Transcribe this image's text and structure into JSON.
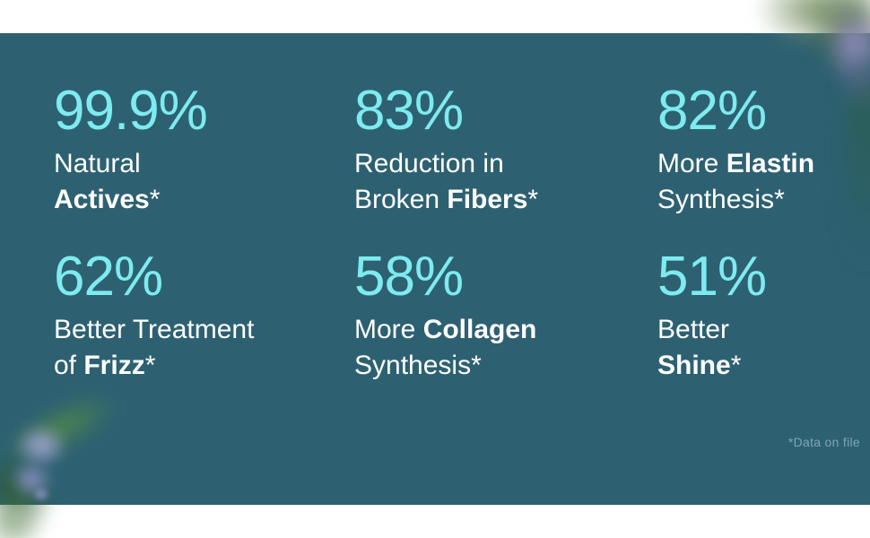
{
  "colors": {
    "panel": "#2d6172",
    "accent": "#7debef",
    "text": "#ffffff",
    "footnote": "#7fa6b5"
  },
  "decor": {
    "top_right": "blurred-plant-with-purple-flower",
    "bottom_left": "blurred-plant-with-purple-flowers"
  },
  "stats": [
    {
      "value": "99.9%",
      "l1_pre": "Natural",
      "l1_bold": "",
      "l1_post": "",
      "l2_pre": "",
      "l2_bold": "Actives",
      "l2_post": "*"
    },
    {
      "value": "83%",
      "l1_pre": "Reduction in",
      "l1_bold": "",
      "l1_post": "",
      "l2_pre": "Broken ",
      "l2_bold": "Fibers",
      "l2_post": "*"
    },
    {
      "value": "82%",
      "l1_pre": "More ",
      "l1_bold": "Elastin",
      "l1_post": "",
      "l2_pre": "Synthesis",
      "l2_bold": "",
      "l2_post": "*"
    },
    {
      "value": "62%",
      "l1_pre": "Better Treatment",
      "l1_bold": "",
      "l1_post": "",
      "l2_pre": "of ",
      "l2_bold": "Frizz",
      "l2_post": "*"
    },
    {
      "value": "58%",
      "l1_pre": "More ",
      "l1_bold": "Collagen",
      "l1_post": "",
      "l2_pre": "Synthesis",
      "l2_bold": "",
      "l2_post": "*"
    },
    {
      "value": "51%",
      "l1_pre": "Better",
      "l1_bold": "",
      "l1_post": "",
      "l2_pre": "",
      "l2_bold": "Shine",
      "l2_post": "*"
    }
  ],
  "footnote": "*Data on file"
}
